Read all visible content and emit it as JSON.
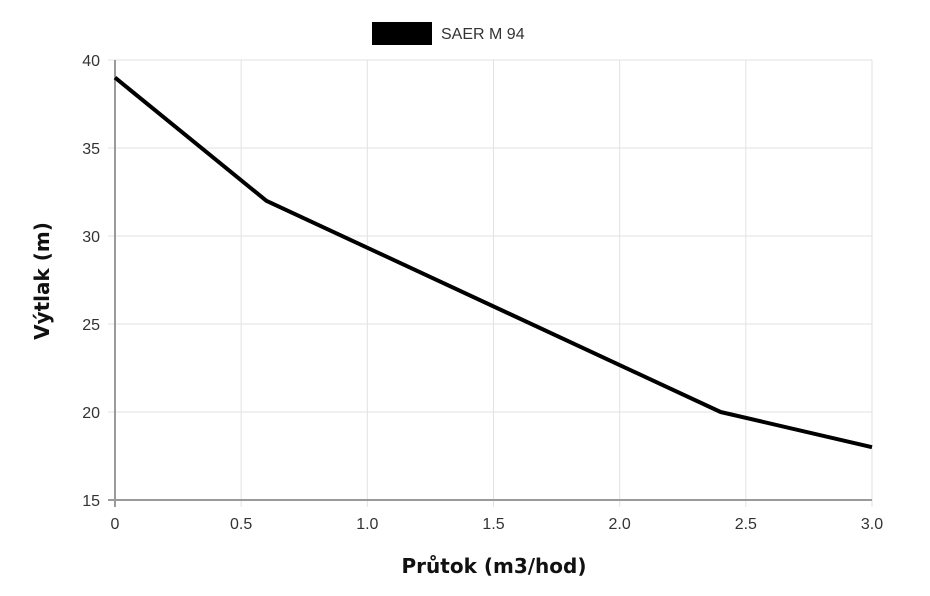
{
  "chart_data": {
    "type": "line",
    "xlabel": "Průtok (m3/hod)",
    "ylabel": "Výtlak (m)",
    "xlim": [
      0,
      3.0
    ],
    "ylim": [
      15,
      40
    ],
    "xticks": [
      "0",
      "0.5",
      "1.0",
      "1.5",
      "2.0",
      "2.5",
      "3.0"
    ],
    "xtick_values": [
      0,
      0.5,
      1.0,
      1.5,
      2.0,
      2.5,
      3.0
    ],
    "yticks": [
      "15",
      "20",
      "25",
      "30",
      "35",
      "40"
    ],
    "ytick_values": [
      15,
      20,
      25,
      30,
      35,
      40
    ],
    "grid": true,
    "legend_position": "top-center",
    "series": [
      {
        "name": "SAER M 94",
        "color": "#000000",
        "x": [
          0,
          0.6,
          2.4,
          3.0
        ],
        "y": [
          39,
          32,
          20,
          18
        ]
      }
    ]
  }
}
